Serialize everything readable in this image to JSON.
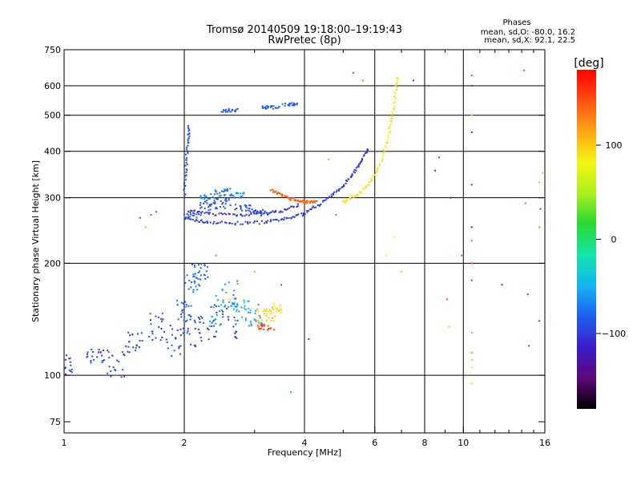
{
  "chart_data": {
    "type": "scatter",
    "title": "Tromsø 20140509 19:18:00–19:19:43",
    "subtitle": "RwPretec (8p)",
    "phase_box": {
      "title": "Phases",
      "line1": "mean, sd,O:  -80.0, 16.2",
      "line2": "mean, sd,X:  92.1, 22.5"
    },
    "xlabel": "Frequency [MHz]",
    "ylabel": "Stationary phase Virtual Height [km]",
    "x_scale": "log",
    "y_scale": "log",
    "xlim": [
      1,
      16
    ],
    "ylim": [
      70,
      750
    ],
    "x_ticks": [
      1,
      2,
      4,
      6,
      8,
      10,
      16
    ],
    "x_ticks_labels": [
      "1",
      "2",
      "4",
      "6",
      "8",
      "10",
      "16"
    ],
    "x_gridlines": [
      2,
      4,
      6,
      8,
      10
    ],
    "x_minor_ticks": [
      3,
      5,
      7,
      9,
      11,
      12,
      13,
      14,
      15
    ],
    "y_ticks": [
      75,
      100,
      200,
      300,
      400,
      500,
      600,
      750
    ],
    "y_ticks_labels": [
      "75",
      "100",
      "200",
      "300",
      "400",
      "500",
      "600",
      "750"
    ],
    "y_gridlines": [
      100,
      200,
      300,
      400,
      500,
      600
    ],
    "grid": true,
    "colorbar": {
      "label": "[deg]",
      "range": [
        -180,
        180
      ],
      "ticks": [
        100,
        0,
        -100
      ],
      "tick_labels": [
        "100",
        "0",
        "−100"
      ],
      "stops": [
        "#000000",
        "#5a0a78",
        "#3a1ec8",
        "#1e5ff0",
        "#14b4f0",
        "#14e6aa",
        "#28d732",
        "#aaf01e",
        "#f5f514",
        "#ffa514",
        "#ff5014",
        "#ff0000"
      ]
    },
    "series": [
      {
        "type": "curve",
        "phase": -100,
        "x": [
          2.05,
          2.3,
          2.7,
          3.2,
          3.6,
          4.0,
          4.4,
          4.8,
          5.2,
          5.5,
          5.8
        ],
        "y": [
          262,
          258,
          256,
          258,
          263,
          272,
          290,
          310,
          340,
          370,
          410
        ]
      },
      {
        "type": "curve",
        "phase": -105,
        "x": [
          2.05,
          2.3,
          2.7,
          3.1,
          3.5,
          3.9
        ],
        "y": [
          276,
          272,
          270,
          271,
          276,
          288
        ]
      },
      {
        "type": "curve",
        "phase": -90,
        "x": [
          2.0,
          2.02,
          2.04,
          2.06
        ],
        "y": [
          300,
          360,
          420,
          470
        ]
      },
      {
        "type": "curve",
        "phase": 90,
        "x": [
          5.0,
          5.4,
          5.8,
          6.2,
          6.5,
          6.7,
          6.85
        ],
        "y": [
          292,
          305,
          325,
          370,
          440,
          530,
          640
        ]
      },
      {
        "type": "curve",
        "phase": 140,
        "x": [
          3.3,
          3.5,
          3.7,
          3.9,
          4.1,
          4.3
        ],
        "y": [
          315,
          305,
          298,
          294,
          292,
          292
        ]
      },
      {
        "type": "cloud",
        "phase": -95,
        "x": [
          1.0,
          1.2,
          1.35,
          1.5,
          1.7,
          1.9,
          2.1,
          2.3,
          2.6
        ],
        "y": [
          108,
          113,
          107,
          125,
          135,
          125,
          130,
          140,
          145
        ],
        "spread": [
          15,
          10,
          20,
          20,
          25,
          25,
          30,
          35,
          40
        ]
      },
      {
        "type": "cloud",
        "phase": -80,
        "x": [
          2.0,
          2.1,
          2.2
        ],
        "y": [
          150,
          175,
          190
        ],
        "spread": [
          20,
          25,
          20
        ]
      },
      {
        "type": "cloud",
        "phase": -55,
        "x": [
          2.4,
          2.6,
          2.8,
          3.0
        ],
        "y": [
          150,
          165,
          150,
          145
        ],
        "spread": [
          30,
          30,
          20,
          20
        ]
      },
      {
        "type": "cloud",
        "phase": -90,
        "x": [
          2.1,
          2.3,
          2.5,
          2.8,
          3.1
        ],
        "y": [
          270,
          285,
          290,
          280,
          275
        ],
        "spread": [
          15,
          15,
          20,
          15,
          10
        ]
      },
      {
        "type": "cloud",
        "phase": -70,
        "x": [
          2.3,
          2.5,
          2.7
        ],
        "y": [
          300,
          310,
          305
        ],
        "spread": [
          15,
          15,
          10
        ]
      },
      {
        "type": "cloud",
        "phase": 95,
        "x": [
          3.2,
          3.35
        ],
        "y": [
          145,
          150
        ],
        "spread": [
          12,
          12
        ]
      },
      {
        "type": "cloud",
        "phase": 150,
        "x": [
          3.2
        ],
        "y": [
          135
        ],
        "spread": [
          5
        ]
      },
      {
        "type": "cloud",
        "phase": -85,
        "x": [
          2.6,
          3.3,
          3.7
        ],
        "y": [
          515,
          525,
          535
        ],
        "spread": [
          10,
          10,
          10
        ]
      }
    ],
    "scatter_points": [
      {
        "x": 1.55,
        "y": 265,
        "phase": -80
      },
      {
        "x": 1.6,
        "y": 250,
        "phase": 120
      },
      {
        "x": 1.65,
        "y": 270,
        "phase": -70
      },
      {
        "x": 1.7,
        "y": 275,
        "phase": -75
      },
      {
        "x": 2.4,
        "y": 210,
        "phase": 140
      },
      {
        "x": 2.6,
        "y": 160,
        "phase": 100
      },
      {
        "x": 3.0,
        "y": 190,
        "phase": 120
      },
      {
        "x": 3.5,
        "y": 175,
        "phase": -75
      },
      {
        "x": 3.7,
        "y": 90,
        "phase": -60
      },
      {
        "x": 4.1,
        "y": 125,
        "phase": -100
      },
      {
        "x": 4.6,
        "y": 380,
        "phase": 110
      },
      {
        "x": 4.8,
        "y": 270,
        "phase": 140
      },
      {
        "x": 5.3,
        "y": 650,
        "phase": -80
      },
      {
        "x": 5.6,
        "y": 620,
        "phase": 130
      },
      {
        "x": 6.4,
        "y": 210,
        "phase": 80
      },
      {
        "x": 6.7,
        "y": 235,
        "phase": 90
      },
      {
        "x": 7.0,
        "y": 190,
        "phase": 110
      },
      {
        "x": 7.5,
        "y": 620,
        "phase": -90
      },
      {
        "x": 8.2,
        "y": 600,
        "phase": -90
      },
      {
        "x": 8.5,
        "y": 355,
        "phase": -100
      },
      {
        "x": 8.7,
        "y": 385,
        "phase": -85
      },
      {
        "x": 9.1,
        "y": 160,
        "phase": 150
      },
      {
        "x": 9.2,
        "y": 135,
        "phase": 100
      },
      {
        "x": 9.3,
        "y": 300,
        "phase": -100
      },
      {
        "x": 9.9,
        "y": 210,
        "phase": -70
      },
      {
        "x": 12.5,
        "y": 175,
        "phase": -90
      },
      {
        "x": 14.2,
        "y": 660,
        "phase": 150
      },
      {
        "x": 14.3,
        "y": 290,
        "phase": 140
      },
      {
        "x": 14.5,
        "y": 165,
        "phase": -90
      },
      {
        "x": 14.6,
        "y": 120,
        "phase": -80
      },
      {
        "x": 15.6,
        "y": 280,
        "phase": -90
      },
      {
        "x": 15.8,
        "y": 350,
        "phase": 100
      }
    ],
    "column_points": [
      {
        "x": 10.5,
        "y": [
          640,
          600,
          500,
          450,
          325,
          250,
          230,
          200,
          180,
          130,
          115,
          110,
          105,
          95
        ],
        "phase": [
          150,
          -90,
          60,
          -100,
          -90,
          -100,
          140,
          150,
          -90,
          120,
          130,
          110,
          70,
          100
        ]
      },
      {
        "x": 15.5,
        "y": [
          140,
          250,
          330
        ],
        "phase": [
          -90,
          130,
          110
        ]
      }
    ]
  }
}
